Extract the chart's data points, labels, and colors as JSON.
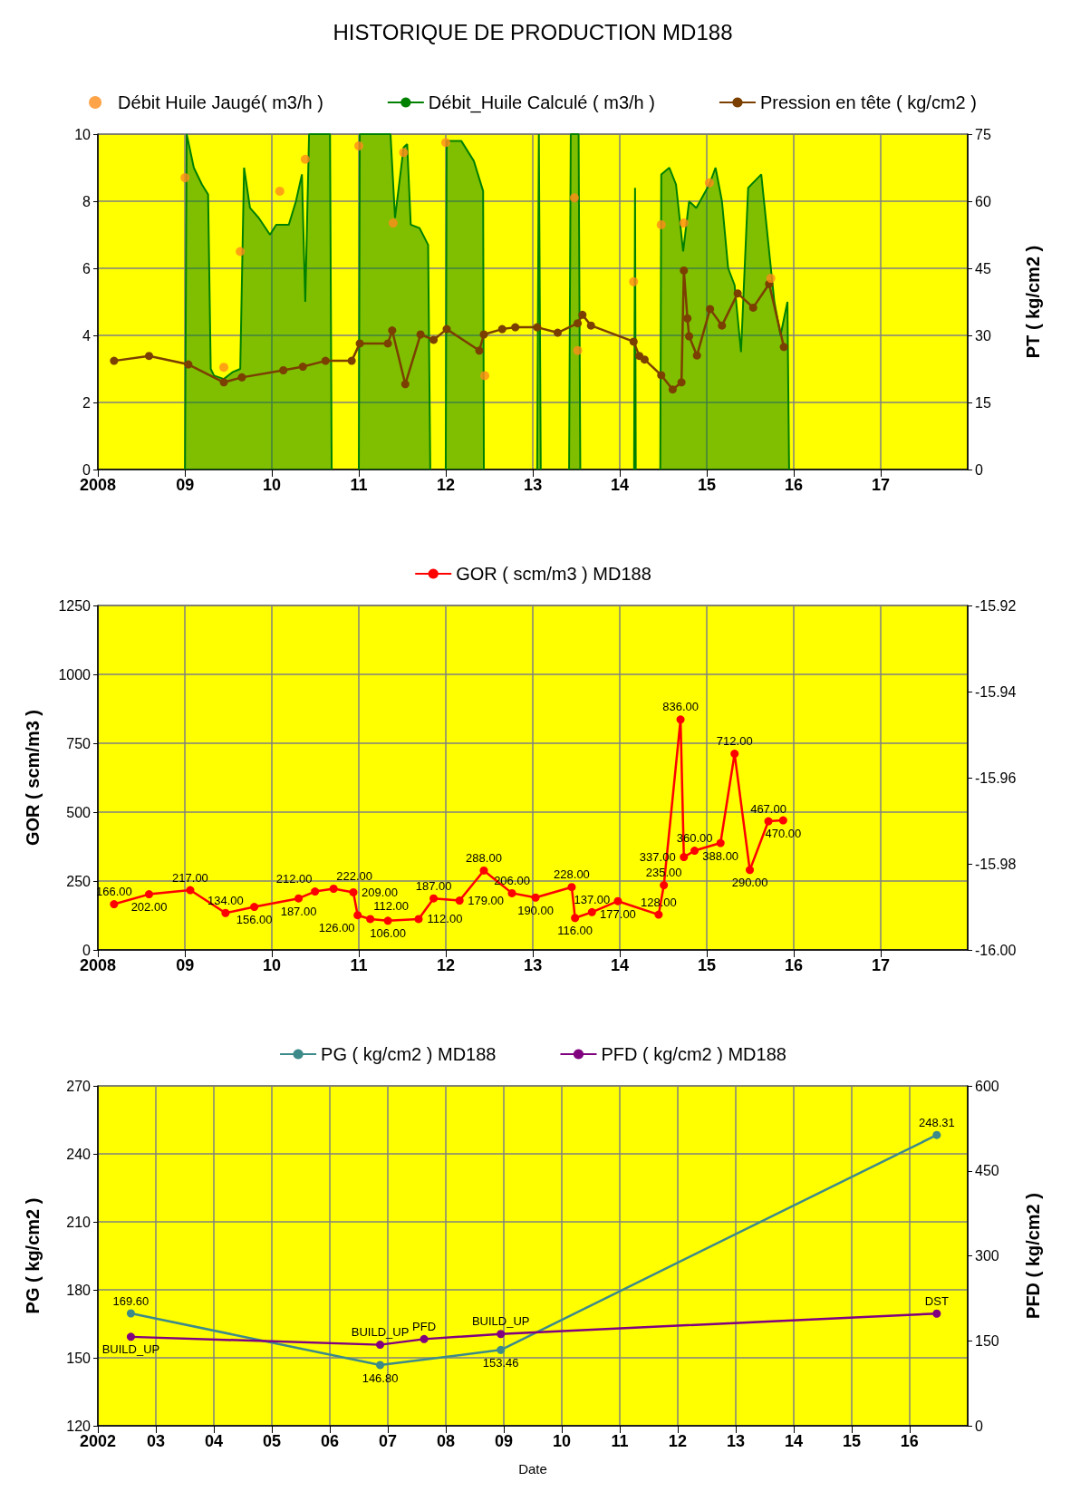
{
  "chart_data": [
    {
      "type": "line",
      "title": "HISTORIQUE DE PRODUCTION MD188",
      "y2label": "PT ( kg/cm2 )",
      "xlim": [
        "2008",
        "2018"
      ],
      "xticks": [
        {
          "value": "2008",
          "label": "2008"
        },
        {
          "value": "2009",
          "label": "09"
        },
        {
          "value": "2010",
          "label": "10"
        },
        {
          "value": "2011",
          "label": "11"
        },
        {
          "value": "2012",
          "label": "12"
        },
        {
          "value": "2013",
          "label": "13"
        },
        {
          "value": "2014",
          "label": "14"
        },
        {
          "value": "2015",
          "label": "15"
        },
        {
          "value": "2016",
          "label": "16"
        },
        {
          "value": "2017",
          "label": "17"
        }
      ],
      "ylim": [
        0,
        10
      ],
      "yticks": [
        0,
        2,
        4,
        6,
        8,
        10
      ],
      "y2lim": [
        0,
        75
      ],
      "y2ticks": [
        0,
        15,
        30,
        45,
        60,
        75
      ],
      "grid": true,
      "legend": "top",
      "series": [
        {
          "name": "Débit Huile Jaugé( m3/h )",
          "type": "scatter",
          "marker": "circle",
          "color": "#ff8c1a",
          "x": [
            "2009-01-01",
            "2009-06-13",
            "2009-08-21",
            "2010-02-03",
            "2010-05-21",
            "2011-01-01",
            "2011-05-25",
            "2011-07-08",
            "2012-01-01",
            "2012-06-13",
            "2013-06-24",
            "2013-07-08",
            "2014-02-28",
            "2014-06-24",
            "2014-09-27",
            "2015-01-12",
            "2015-09-27"
          ],
          "values": [
            8.7,
            3.05,
            6.5,
            8.3,
            9.25,
            9.65,
            7.35,
            9.45,
            9.75,
            2.8,
            8.1,
            3.55,
            5.6,
            7.3,
            7.35,
            8.55,
            5.7
          ]
        },
        {
          "name": "Débit_Huile Calculé ( m3/h )",
          "type": "area",
          "marker": "none",
          "color": "#008000",
          "x": [
            "2009-01-01",
            "2009-01-08",
            "2009-02-07",
            "2009-03-13",
            "2009-04-08",
            "2009-04-19",
            "2009-05-03",
            "2009-06-13",
            "2009-07-19",
            "2009-08-21",
            "2009-09-06",
            "2009-10-01",
            "2009-11-07",
            "2009-12-24",
            "2010-01-19",
            "2010-03-13",
            "2010-04-12",
            "2010-05-07",
            "2010-05-21",
            "2010-06-06",
            "2010-07-19",
            "2010-09-02",
            "2010-09-09",
            "2010-11-07",
            "2011-01-01",
            "2011-01-05",
            "2011-05-14",
            "2011-06-02",
            "2011-07-08",
            "2011-07-23",
            "2011-08-07",
            "2011-09-13",
            "2011-10-19",
            "2011-10-28",
            "2011-11-25",
            "2012-01-01",
            "2012-01-05",
            "2012-03-06",
            "2012-04-28",
            "2012-06-06",
            "2012-06-09",
            "2012-09-13",
            "2013-01-19",
            "2013-01-26",
            "2013-02-03",
            "2013-04-19",
            "2013-06-02",
            "2013-06-09",
            "2013-07-12",
            "2013-07-19",
            "2013-11-25",
            "2014-03-02",
            "2014-03-06",
            "2014-03-09",
            "2014-04-19",
            "2014-06-20",
            "2014-06-24",
            "2014-07-28",
            "2014-08-25",
            "2014-09-24",
            "2014-10-19",
            "2014-11-18",
            "2015-01-12",
            "2015-02-07",
            "2015-03-06",
            "2015-04-01",
            "2015-04-28",
            "2015-05-25",
            "2015-06-24",
            "2015-08-18",
            "2015-09-13",
            "2015-10-12",
            "2015-11-07",
            "2015-12-06",
            "2015-12-13"
          ],
          "values": [
            0,
            10,
            9,
            8.5,
            8.2,
            3,
            2.8,
            2.7,
            2.9,
            3,
            9,
            7.8,
            7.5,
            7,
            7.3,
            7.3,
            8,
            8.8,
            5,
            10,
            10,
            10,
            0,
            null,
            0,
            10,
            10,
            7.5,
            9.6,
            9.7,
            7.3,
            7.2,
            6.7,
            0,
            null,
            0,
            9.8,
            9.8,
            9.2,
            8.3,
            0,
            null,
            0,
            10,
            0,
            null,
            0,
            10,
            10,
            0,
            null,
            0,
            8.4,
            0,
            null,
            0,
            8.8,
            9,
            8.5,
            6.5,
            8,
            7.8,
            8.5,
            9,
            8,
            6,
            5.5,
            3.5,
            8.4,
            8.8,
            7,
            5,
            4,
            5,
            0
          ]
        },
        {
          "name": "Pression en tête ( kg/cm2 )",
          "type": "line",
          "marker": "circle",
          "axis": "y2",
          "color": "#7b3f00",
          "x": [
            "2008-03-09",
            "2008-08-03",
            "2009-01-15",
            "2009-06-13",
            "2009-08-28",
            "2010-02-18",
            "2010-05-11",
            "2010-08-14",
            "2010-12-02",
            "2011-01-05",
            "2011-05-03",
            "2011-05-21",
            "2011-07-15",
            "2011-09-17",
            "2011-11-11",
            "2012-01-05",
            "2012-05-21",
            "2012-06-09",
            "2012-08-25",
            "2012-10-19",
            "2013-01-19",
            "2013-04-15",
            "2013-07-08",
            "2013-07-28",
            "2013-09-02",
            "2014-02-28",
            "2014-03-24",
            "2014-04-15",
            "2014-06-24",
            "2014-08-11",
            "2014-09-17",
            "2014-09-27",
            "2014-10-12",
            "2014-10-19",
            "2014-11-21",
            "2015-01-15",
            "2015-03-06",
            "2015-05-11",
            "2015-07-15",
            "2015-09-20",
            "2015-11-21"
          ],
          "values": [
            24.3,
            25.4,
            23.5,
            19.5,
            20.6,
            22.2,
            23,
            24.3,
            24.3,
            28.2,
            28.2,
            31.1,
            19.1,
            30.2,
            29,
            31.4,
            26.6,
            30.2,
            31.4,
            31.8,
            31.8,
            30.6,
            32.7,
            34.6,
            32.2,
            28.6,
            25.4,
            24.6,
            21.1,
            17.9,
            19.5,
            44.5,
            33.8,
            29.8,
            25.5,
            35.9,
            32.2,
            39.4,
            36.2,
            41.5,
            27.4
          ]
        }
      ]
    },
    {
      "type": "line",
      "ylabel": "GOR ( scm/m3 )",
      "xlim": [
        "2008",
        "2018"
      ],
      "xticks": [
        {
          "value": "2008",
          "label": "2008"
        },
        {
          "value": "2009",
          "label": "09"
        },
        {
          "value": "2010",
          "label": "10"
        },
        {
          "value": "2011",
          "label": "11"
        },
        {
          "value": "2012",
          "label": "12"
        },
        {
          "value": "2013",
          "label": "13"
        },
        {
          "value": "2014",
          "label": "14"
        },
        {
          "value": "2015",
          "label": "15"
        },
        {
          "value": "2016",
          "label": "16"
        },
        {
          "value": "2017",
          "label": "17"
        }
      ],
      "ylim": [
        0,
        1250
      ],
      "yticks": [
        0,
        250,
        500,
        750,
        1000,
        1250
      ],
      "y2lim": [
        -16,
        -15.92
      ],
      "y2ticks": [
        {
          "value": -16,
          "label": "-16.00"
        },
        -15.98,
        -15.96,
        -15.94,
        -15.92
      ],
      "grid": true,
      "legend": "top",
      "marker": "circle",
      "series": [
        {
          "name": "GOR ( scm/m3 ) MD188",
          "color": "#ff0000",
          "x": [
            "2008-03-09",
            "2008-08-03",
            "2009-01-23",
            "2009-06-20",
            "2009-10-19",
            "2010-04-23",
            "2010-07-01",
            "2010-09-17",
            "2010-12-09",
            "2010-12-27",
            "2011-02-18",
            "2011-05-03",
            "2011-09-09",
            "2011-11-11",
            "2012-02-28",
            "2012-06-09",
            "2012-10-05",
            "2013-01-12",
            "2013-06-13",
            "2013-06-27",
            "2013-09-06",
            "2013-12-24",
            "2014-06-13",
            "2014-07-05",
            "2014-09-13",
            "2014-09-27",
            "2014-11-11",
            "2015-02-28",
            "2015-04-28",
            "2015-07-01",
            "2015-09-17",
            "2015-11-18"
          ],
          "values": [
            166,
            202,
            217,
            134,
            156,
            187,
            212,
            222,
            209,
            126,
            112,
            106,
            112,
            187,
            179,
            288,
            206,
            190,
            228,
            116,
            137,
            177,
            128,
            235,
            836,
            337,
            360,
            388,
            712,
            290,
            467,
            470
          ],
          "value_labels": [
            "166.00",
            "202.00",
            "217.00",
            "134.00",
            "156.00",
            "187.00",
            "212.00",
            "222.00",
            "209.00",
            "126.00",
            "112.00",
            "106.00",
            "112.00",
            "187.00",
            "179.00",
            "288.00",
            "206.00",
            "190.00",
            "228.00",
            "116.00",
            "137.00",
            "177.00",
            "128.00",
            "235.00",
            "836.00",
            "337.00",
            "360.00",
            "388.00",
            "712.00",
            "290.00",
            "467.00",
            "470.00"
          ]
        }
      ]
    },
    {
      "type": "line",
      "ylabel": "PG ( kg/cm2 )",
      "y2label": "PFD ( kg/cm2 )",
      "xlabel": "Date",
      "xlim": [
        "2002",
        "2017"
      ],
      "xticks": [
        {
          "value": "2002",
          "label": "2002"
        },
        {
          "value": "2003",
          "label": "03"
        },
        {
          "value": "2004",
          "label": "04"
        },
        {
          "value": "2005",
          "label": "05"
        },
        {
          "value": "2006",
          "label": "06"
        },
        {
          "value": "2007",
          "label": "07"
        },
        {
          "value": "2008",
          "label": "08"
        },
        {
          "value": "2009",
          "label": "09"
        },
        {
          "value": "2010",
          "label": "10"
        },
        {
          "value": "2011",
          "label": "11"
        },
        {
          "value": "2012",
          "label": "12"
        },
        {
          "value": "2013",
          "label": "13"
        },
        {
          "value": "2014",
          "label": "14"
        },
        {
          "value": "2015",
          "label": "15"
        },
        {
          "value": "2016",
          "label": "16"
        }
      ],
      "ylim": [
        120,
        270
      ],
      "yticks": [
        120,
        150,
        180,
        210,
        240,
        270
      ],
      "y2lim": [
        0,
        600
      ],
      "y2ticks": [
        0,
        150,
        300,
        450,
        600
      ],
      "grid": true,
      "legend": "top",
      "marker": "circle",
      "series": [
        {
          "name": "PG ( kg/cm2 ) MD188",
          "color": "#3d8a8a",
          "x": [
            "2002-07-28",
            "2006-11-14",
            "2008-12-13",
            "2016-06-20"
          ],
          "values": [
            169.6,
            146.8,
            153.46,
            248.31
          ],
          "value_labels": [
            "169.60",
            "146.80",
            "153.46",
            "248.31"
          ]
        },
        {
          "name": "PFD ( kg/cm2 ) MD188",
          "color": "#800080",
          "axis": "y2",
          "x": [
            "2002-07-28",
            "2006-11-14",
            "2007-08-18",
            "2008-12-13",
            "2016-06-20"
          ],
          "values": [
            157,
            143,
            153,
            162,
            198
          ],
          "value_labels": [
            "BUILD_UP",
            "BUILD_UP",
            "PFD",
            "BUILD_UP",
            "DST"
          ]
        }
      ]
    }
  ]
}
